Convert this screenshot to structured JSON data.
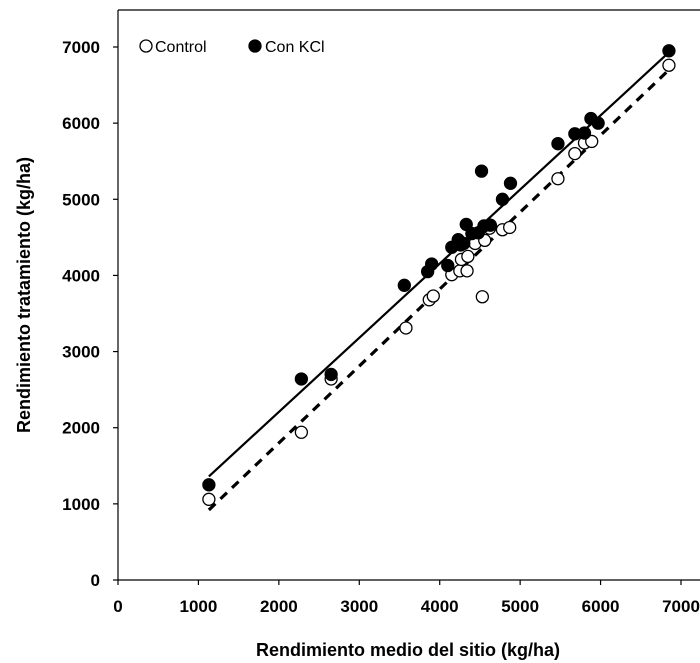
{
  "chart_data": {
    "type": "scatter",
    "xlabel": "Rendimiento medio del sitio (kg/ha)",
    "ylabel": "Rendimiento tratamiento (kg/ha)",
    "xlim": [
      0,
      7000
    ],
    "ylim": [
      0,
      7000
    ],
    "xticks": [
      "0",
      "1000",
      "2000",
      "3000",
      "4000",
      "5000",
      "6000",
      "7000"
    ],
    "yticks": [
      "0",
      "1000",
      "2000",
      "3000",
      "4000",
      "5000",
      "6000",
      "7000"
    ],
    "grid": false,
    "legend_position": "top-left",
    "series": [
      {
        "name": "Control",
        "marker": "open-circle",
        "trendline_style": "dashed",
        "trendline": [
          [
            1130,
            920
          ],
          [
            6850,
            6700
          ]
        ],
        "points": [
          [
            1130,
            1060
          ],
          [
            2280,
            1940
          ],
          [
            2650,
            2640
          ],
          [
            3580,
            3310
          ],
          [
            3870,
            3680
          ],
          [
            3920,
            3730
          ],
          [
            4150,
            4010
          ],
          [
            4250,
            4060
          ],
          [
            4340,
            4060
          ],
          [
            4270,
            4210
          ],
          [
            4350,
            4250
          ],
          [
            4440,
            4420
          ],
          [
            4560,
            4460
          ],
          [
            4530,
            3720
          ],
          [
            4620,
            4620
          ],
          [
            4780,
            4600
          ],
          [
            4870,
            4630
          ],
          [
            5470,
            5270
          ],
          [
            5680,
            5600
          ],
          [
            5800,
            5740
          ],
          [
            5890,
            5760
          ],
          [
            6850,
            6760
          ]
        ]
      },
      {
        "name": "Con KCl",
        "marker": "filled-circle",
        "trendline_style": "solid",
        "trendline": [
          [
            1130,
            1360
          ],
          [
            6850,
            6930
          ]
        ],
        "points": [
          [
            1130,
            1250
          ],
          [
            2280,
            2640
          ],
          [
            2650,
            2700
          ],
          [
            3560,
            3870
          ],
          [
            3850,
            4050
          ],
          [
            3900,
            4150
          ],
          [
            4100,
            4130
          ],
          [
            4150,
            4370
          ],
          [
            4230,
            4470
          ],
          [
            4260,
            4400
          ],
          [
            4300,
            4420
          ],
          [
            4330,
            4670
          ],
          [
            4400,
            4550
          ],
          [
            4480,
            4560
          ],
          [
            4520,
            5370
          ],
          [
            4550,
            4650
          ],
          [
            4630,
            4660
          ],
          [
            4780,
            5000
          ],
          [
            4880,
            5210
          ],
          [
            5470,
            5730
          ],
          [
            5680,
            5860
          ],
          [
            5800,
            5870
          ],
          [
            5880,
            6060
          ],
          [
            5970,
            6000
          ],
          [
            6850,
            6950
          ]
        ]
      }
    ]
  }
}
